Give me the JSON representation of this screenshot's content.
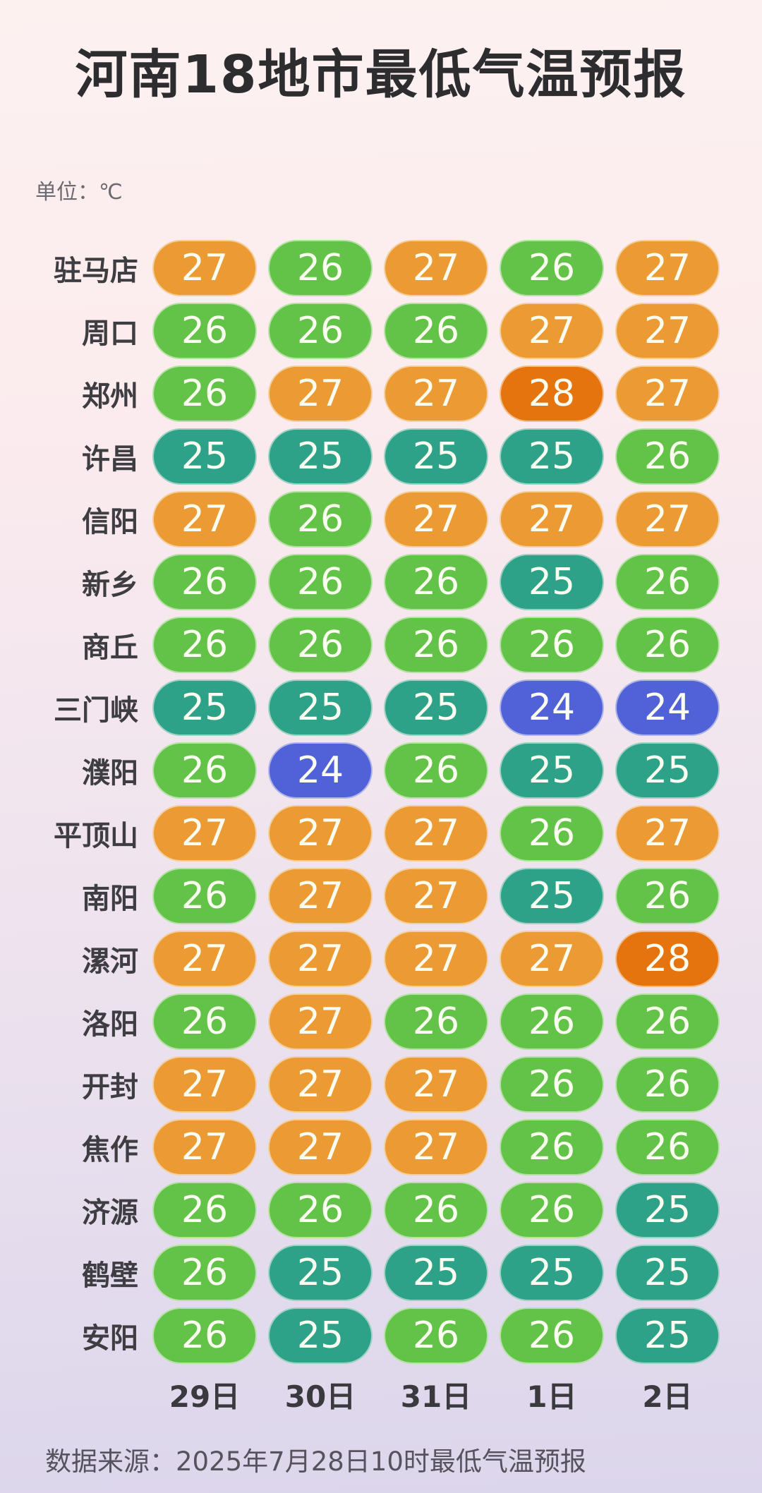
{
  "title": "河南18地市最低气温预报",
  "unit_label": "单位：℃",
  "source_label": "数据来源：2025年7月28日10时最低气温预报",
  "chart_data": {
    "type": "heatmap",
    "title": "河南18地市最低气温预报",
    "unit": "℃",
    "value_range": [
      24,
      28
    ],
    "dates": [
      "29日",
      "30日",
      "31日",
      "1日",
      "2日"
    ],
    "rows": [
      {
        "city": "驻马店",
        "values": [
          27,
          26,
          27,
          26,
          27
        ]
      },
      {
        "city": "周口",
        "values": [
          26,
          26,
          26,
          27,
          27
        ]
      },
      {
        "city": "郑州",
        "values": [
          26,
          27,
          27,
          28,
          27
        ]
      },
      {
        "city": "许昌",
        "values": [
          25,
          25,
          25,
          25,
          26
        ]
      },
      {
        "city": "信阳",
        "values": [
          27,
          26,
          27,
          27,
          27
        ]
      },
      {
        "city": "新乡",
        "values": [
          26,
          26,
          26,
          25,
          26
        ]
      },
      {
        "city": "商丘",
        "values": [
          26,
          26,
          26,
          26,
          26
        ]
      },
      {
        "city": "三门峡",
        "values": [
          25,
          25,
          25,
          24,
          24
        ]
      },
      {
        "city": "濮阳",
        "values": [
          26,
          24,
          26,
          25,
          25
        ]
      },
      {
        "city": "平顶山",
        "values": [
          27,
          27,
          27,
          26,
          27
        ]
      },
      {
        "city": "南阳",
        "values": [
          26,
          27,
          27,
          25,
          26
        ]
      },
      {
        "city": "漯河",
        "values": [
          27,
          27,
          27,
          27,
          28
        ]
      },
      {
        "city": "洛阳",
        "values": [
          26,
          27,
          26,
          26,
          26
        ]
      },
      {
        "city": "开封",
        "values": [
          27,
          27,
          27,
          26,
          26
        ]
      },
      {
        "city": "焦作",
        "values": [
          27,
          27,
          27,
          26,
          26
        ]
      },
      {
        "city": "济源",
        "values": [
          26,
          26,
          26,
          26,
          25
        ]
      },
      {
        "city": "鹤壁",
        "values": [
          26,
          25,
          25,
          25,
          25
        ]
      },
      {
        "city": "安阳",
        "values": [
          26,
          25,
          26,
          26,
          25
        ]
      }
    ],
    "color_map": {
      "24": "#5161D8",
      "25": "#2EA189",
      "26": "#62C348",
      "27": "#EB9A34",
      "28": "#E5740E"
    },
    "colors": {
      "background_top": "#FDF1F0",
      "background_bottom": "#DCD6EC",
      "title_text": "#2D2D30",
      "pill_text": "#FBFDF0"
    },
    "legend_position": "none"
  }
}
